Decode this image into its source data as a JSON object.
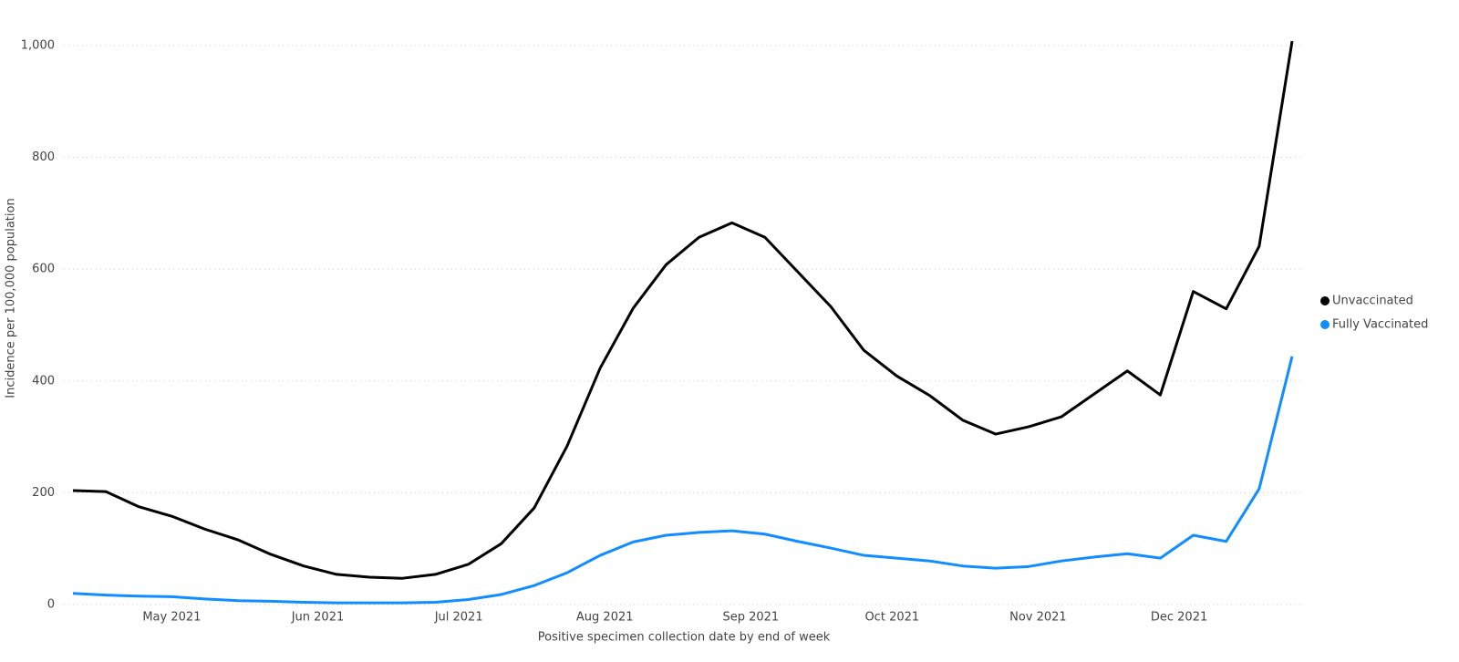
{
  "chart_data": {
    "type": "line",
    "y_label": "Incidence per 100,000 population",
    "x_label": "Positive specimen collection date by end of week",
    "x": [
      0,
      1,
      2,
      3,
      4,
      5,
      6,
      7,
      8,
      9,
      10,
      11,
      12,
      13,
      14,
      15,
      16,
      17,
      18,
      19,
      20,
      21,
      22,
      23,
      24,
      25,
      26,
      27,
      28,
      29,
      30,
      31,
      32,
      33,
      34,
      35,
      36,
      37
    ],
    "xlim": [
      0,
      37
    ],
    "xticks": [
      {
        "value": 3,
        "label": "May 2021"
      },
      {
        "value": 7.43,
        "label": "Jun 2021"
      },
      {
        "value": 11.71,
        "label": "Jul 2021"
      },
      {
        "value": 16.14,
        "label": "Aug 2021"
      },
      {
        "value": 20.57,
        "label": "Sep 2021"
      },
      {
        "value": 24.86,
        "label": "Oct 2021"
      },
      {
        "value": 29.29,
        "label": "Nov 2021"
      },
      {
        "value": 33.57,
        "label": "Dec 2021"
      }
    ],
    "ylim": [
      0,
      1000
    ],
    "yticks": [
      0,
      200,
      400,
      600,
      800,
      {
        "value": 1000,
        "label": "1,000"
      }
    ],
    "grid": true,
    "legend": "right",
    "series": [
      {
        "name": "Unvaccinated",
        "color": "#000000",
        "values": [
          204,
          202,
          175,
          158,
          135,
          116,
          90,
          69,
          54,
          49,
          47,
          54,
          72,
          109,
          173,
          284,
          423,
          530,
          608,
          657,
          683,
          657,
          595,
          533,
          455,
          409,
          374,
          330,
          305,
          318,
          336,
          377,
          418,
          375,
          560,
          529,
          641,
          1008
        ]
      },
      {
        "name": "Fully Vaccinated",
        "color": "#118dff",
        "values": [
          20,
          17,
          15,
          14,
          10,
          7,
          6,
          4,
          3,
          3,
          3,
          4,
          9,
          18,
          34,
          57,
          88,
          112,
          124,
          129,
          132,
          126,
          113,
          101,
          88,
          83,
          78,
          69,
          65,
          68,
          78,
          85,
          91,
          83,
          124,
          113,
          207,
          444
        ]
      }
    ]
  }
}
